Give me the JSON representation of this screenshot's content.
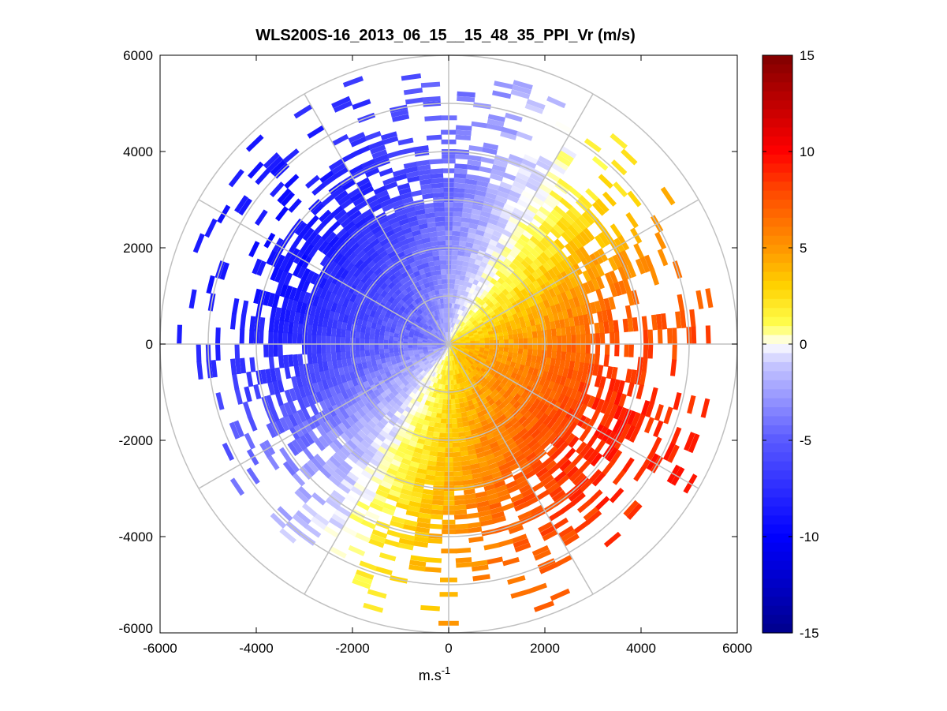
{
  "chart_data": {
    "type": "heatmap",
    "subtype": "polar-ppi-scan",
    "title": "WLS200S-16_2013_06_15__15_48_35_PPI_Vr (m/s)",
    "xlabel_base": "m.s",
    "xlabel_exponent": "-1",
    "ylabel": "",
    "xlim": [
      -6000,
      6000
    ],
    "ylim": [
      -6000,
      6000
    ],
    "x_ticks": [
      -6000,
      -4000,
      -2000,
      0,
      2000,
      4000,
      6000
    ],
    "y_ticks": [
      6000,
      4000,
      2000,
      0,
      -2000,
      -4000,
      -6000
    ],
    "x_tick_labels": [
      "-6000",
      "-4000",
      "-2000",
      "0",
      "2000",
      "4000",
      "6000"
    ],
    "y_tick_labels": [
      "6000",
      "4000",
      "2000",
      "0",
      "-2000",
      "-4000",
      "-6000"
    ],
    "grid": true,
    "range_rings": [
      1000,
      2000,
      3000,
      4000,
      5000,
      6000
    ],
    "spokes_deg": [
      0,
      30,
      60,
      90,
      120,
      150,
      180,
      210,
      240,
      270,
      300,
      330
    ],
    "colorbar": {
      "min": -15,
      "max": 15,
      "ticks": [
        15,
        10,
        5,
        0,
        -5,
        -10,
        -15
      ],
      "tick_labels": [
        "15",
        "10",
        "5",
        "0",
        "-5",
        "-10",
        "-15"
      ],
      "colormap": "blue-white-yellow-red",
      "stops": [
        {
          "value": -15,
          "color": "#00008c"
        },
        {
          "value": -10,
          "color": "#0000ff"
        },
        {
          "value": -5,
          "color": "#5a5aff"
        },
        {
          "value": -1,
          "color": "#c8c8ff"
        },
        {
          "value": 0,
          "color": "#ffffff"
        },
        {
          "value": 1,
          "color": "#ffff50"
        },
        {
          "value": 3,
          "color": "#ffd200"
        },
        {
          "value": 5,
          "color": "#ff9600"
        },
        {
          "value": 8,
          "color": "#ff4600"
        },
        {
          "value": 10,
          "color": "#ff0000"
        },
        {
          "value": 15,
          "color": "#800000"
        }
      ]
    },
    "field_model": {
      "approach_direction_deg": 300,
      "max_inbound_velocity": -9,
      "max_outbound_velocity": 9,
      "typical_max_range_m": 4200
    }
  }
}
